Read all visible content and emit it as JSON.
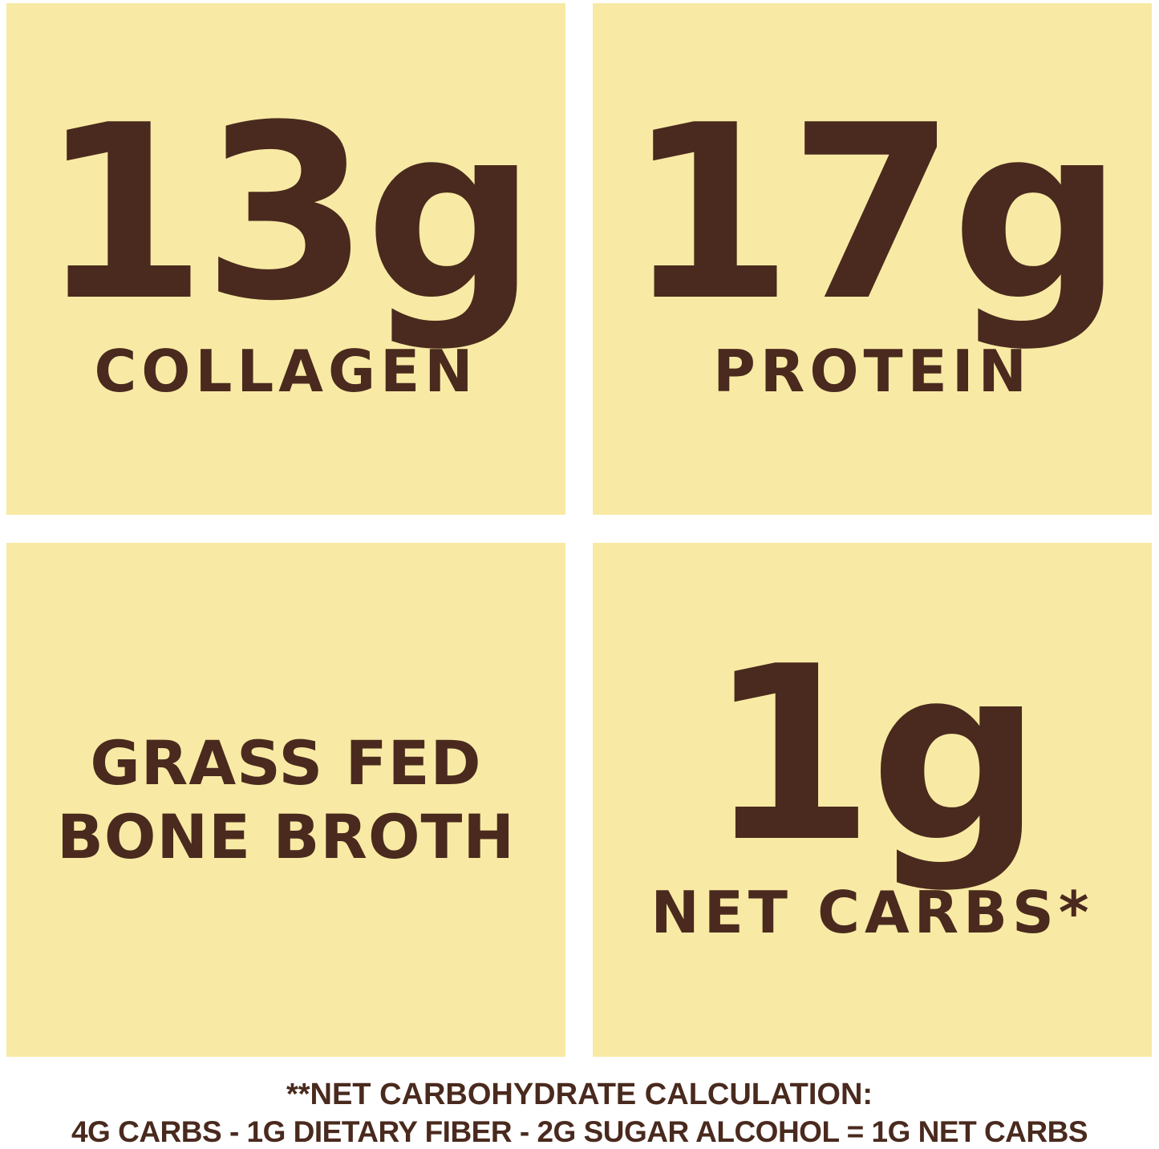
{
  "colors": {
    "tile_background": "#f8eaa4",
    "text": "#4a2a1e"
  },
  "tiles": [
    {
      "value": "13g",
      "label": "COLLAGEN"
    },
    {
      "value": "17g",
      "label": "PROTEIN"
    },
    {
      "line1": "GRASS FED",
      "line2": "BONE BROTH"
    },
    {
      "value": "1g",
      "label": "NET CARBS*"
    }
  ],
  "footnote": {
    "title": "**NET CARBOHYDRATE CALCULATION:",
    "formula": "4G CARBS - 1G DIETARY FIBER - 2G SUGAR ALCOHOL = 1G NET CARBS"
  }
}
